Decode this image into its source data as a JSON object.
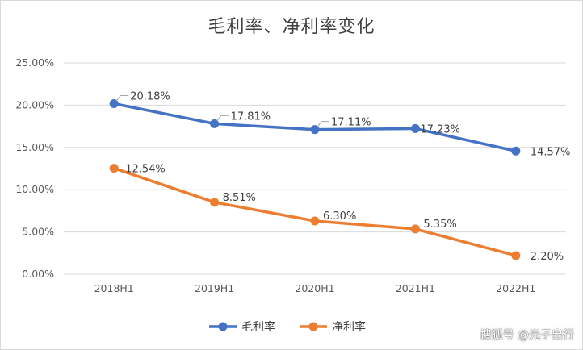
{
  "chart_data": {
    "type": "line",
    "title": "毛利率、净利率变化",
    "categories": [
      "2018H1",
      "2019H1",
      "2020H1",
      "2021H1",
      "2022H1"
    ],
    "y_ticks": [
      "0.00%",
      "5.00%",
      "10.00%",
      "15.00%",
      "20.00%",
      "25.00%"
    ],
    "ylim": [
      0,
      25
    ],
    "grid": true,
    "legend_position": "bottom",
    "series": [
      {
        "name": "毛利率",
        "color": "#4472c4",
        "values": [
          20.18,
          17.81,
          17.11,
          17.23,
          14.57
        ],
        "labels": [
          "20.18%",
          "17.81%",
          "17.11%",
          "17.23%",
          "14.57%"
        ]
      },
      {
        "name": "净利率",
        "color": "#ed7d31",
        "values": [
          12.54,
          8.51,
          6.3,
          5.35,
          2.2
        ],
        "labels": [
          "12.54%",
          "8.51%",
          "6.30%",
          "5.35%",
          "2.20%"
        ]
      }
    ]
  },
  "watermark": "搜狐号 @光子出行"
}
